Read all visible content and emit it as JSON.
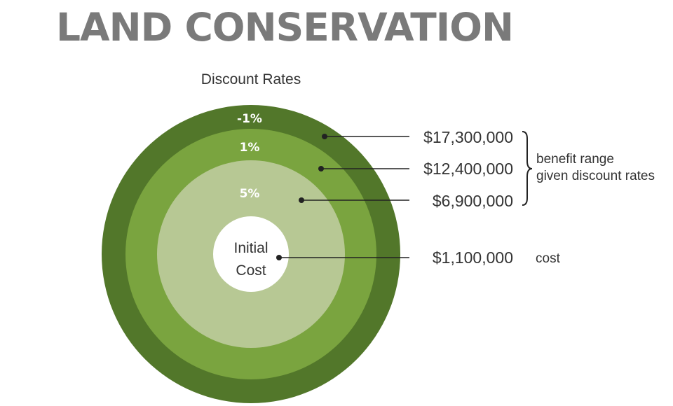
{
  "title": "LAND CONSERVATION",
  "subtitle": "Discount Rates",
  "colors": {
    "outer_ring": "#52772a",
    "middle_ring": "#7aa43f",
    "inner_ring": "#b7c894",
    "center": "#ffffff",
    "title": "#7a7a7a"
  },
  "rings": [
    {
      "rate_label": "-1%",
      "value_label": "$17,300,000",
      "value": 17300000
    },
    {
      "rate_label": "1%",
      "value_label": "$12,400,000",
      "value": 12400000
    },
    {
      "rate_label": "5%",
      "value_label": "$6,900,000",
      "value": 6900000
    }
  ],
  "center": {
    "line1": "Initial",
    "line2": "Cost",
    "value_label": "$1,100,000",
    "value": 1100000,
    "note": "cost"
  },
  "benefit_note": {
    "line1": "benefit range",
    "line2": "given discount rates"
  }
}
